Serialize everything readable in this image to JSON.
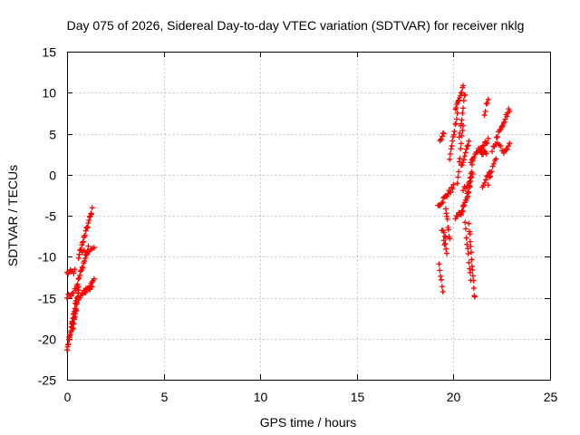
{
  "chart_data": {
    "type": "scatter",
    "title": "Day 075 of 2026, Sidereal Day-to-day VTEC variation (SDTVAR) for receiver nklg",
    "xlabel": "GPS time / hours",
    "ylabel": "SDTVAR / TECUs",
    "xlim": [
      0,
      25
    ],
    "ylim": [
      -25,
      15
    ],
    "grid": true,
    "marker": "plus",
    "x_ticks": [
      0,
      5,
      10,
      15,
      20,
      25
    ],
    "y_ticks": [
      15,
      10,
      5,
      0,
      -5,
      -10,
      -15,
      -20,
      -25
    ],
    "x_tick_labels": [
      "0",
      "5",
      "10",
      "15",
      "20",
      "25"
    ],
    "y_tick_labels": [
      "15",
      "10",
      "5",
      "0",
      "-5",
      "-10",
      "-15",
      "-20",
      "-25"
    ],
    "series": [
      {
        "name": "SDTVAR",
        "color": "#ff0000",
        "segments": [
          {
            "x": [
              0.0,
              0.4
            ],
            "y": [
              -12.0,
              -11.8
            ],
            "n": 8
          },
          {
            "x": [
              0.0,
              0.5
            ],
            "y": [
              -21.5,
              -15.0
            ],
            "n": 22
          },
          {
            "x": [
              0.1,
              0.5
            ],
            "y": [
              -20.0,
              -16.0
            ],
            "n": 12
          },
          {
            "x": [
              0.3,
              0.6
            ],
            "y": [
              -19.0,
              -14.0
            ],
            "n": 14
          },
          {
            "x": [
              0.0,
              0.6
            ],
            "y": [
              -15.0,
              -13.5
            ],
            "n": 10
          },
          {
            "x": [
              0.5,
              1.1
            ],
            "y": [
              -13.5,
              -9.0
            ],
            "n": 16
          },
          {
            "x": [
              0.6,
              1.3
            ],
            "y": [
              -10.0,
              -4.3
            ],
            "n": 22
          },
          {
            "x": [
              0.6,
              1.4
            ],
            "y": [
              -15.0,
              -13.0
            ],
            "n": 16
          },
          {
            "x": [
              0.8,
              1.4
            ],
            "y": [
              -9.5,
              -9.0
            ],
            "n": 8
          },
          {
            "x": [
              0.9,
              1.3
            ],
            "y": [
              -14.5,
              -13.5
            ],
            "n": 8
          },
          {
            "x": [
              19.25,
              19.45
            ],
            "y": [
              -11.0,
              -14.2
            ],
            "n": 6
          },
          {
            "x": [
              19.3,
              19.5
            ],
            "y": [
              4.3,
              4.9
            ],
            "n": 6
          },
          {
            "x": [
              19.4,
              19.6
            ],
            "y": [
              -6.8,
              -7.6
            ],
            "n": 5
          },
          {
            "x": [
              19.5,
              19.65
            ],
            "y": [
              -8.0,
              -9.3
            ],
            "n": 5
          },
          {
            "x": [
              19.2,
              20.0
            ],
            "y": [
              -3.8,
              -1.5
            ],
            "n": 18
          },
          {
            "x": [
              19.6,
              19.8
            ],
            "y": [
              -4.0,
              -8.0
            ],
            "n": 8
          },
          {
            "x": [
              19.8,
              20.2
            ],
            "y": [
              2.0,
              7.5
            ],
            "n": 12
          },
          {
            "x": [
              20.1,
              20.5
            ],
            "y": [
              8.0,
              10.6
            ],
            "n": 12
          },
          {
            "x": [
              20.3,
              20.6
            ],
            "y": [
              4.5,
              10.0
            ],
            "n": 10
          },
          {
            "x": [
              20.2,
              20.5
            ],
            "y": [
              -1.0,
              6.0
            ],
            "n": 10
          },
          {
            "x": [
              20.4,
              20.9
            ],
            "y": [
              -5.0,
              -1.0
            ],
            "n": 14
          },
          {
            "x": [
              20.1,
              20.5
            ],
            "y": [
              -5.5,
              -4.0
            ],
            "n": 8
          },
          {
            "x": [
              20.7,
              21.0
            ],
            "y": [
              -3.0,
              1.5
            ],
            "n": 10
          },
          {
            "x": [
              20.4,
              20.8
            ],
            "y": [
              1.0,
              4.2
            ],
            "n": 10
          },
          {
            "x": [
              20.5,
              21.0
            ],
            "y": [
              -2.0,
              0.0
            ],
            "n": 8
          },
          {
            "x": [
              20.8,
              21.1
            ],
            "y": [
              -6.0,
              -15.2
            ],
            "n": 14
          },
          {
            "x": [
              20.6,
              20.9
            ],
            "y": [
              -6.0,
              -13.0
            ],
            "n": 10
          },
          {
            "x": [
              20.9,
              21.4
            ],
            "y": [
              1.5,
              3.5
            ],
            "n": 10
          },
          {
            "x": [
              21.3,
              21.7
            ],
            "y": [
              3.0,
              2.5
            ],
            "n": 8
          },
          {
            "x": [
              21.5,
              21.9
            ],
            "y": [
              -1.8,
              0.5
            ],
            "n": 8
          },
          {
            "x": [
              21.4,
              21.8
            ],
            "y": [
              3.0,
              4.3
            ],
            "n": 8
          },
          {
            "x": [
              21.6,
              21.8
            ],
            "y": [
              7.5,
              9.2
            ],
            "n": 5
          },
          {
            "x": [
              21.8,
              22.2
            ],
            "y": [
              -1.0,
              2.0
            ],
            "n": 8
          },
          {
            "x": [
              22.0,
              22.5
            ],
            "y": [
              3.0,
              6.0
            ],
            "n": 10
          },
          {
            "x": [
              22.2,
              22.6
            ],
            "y": [
              4.0,
              3.0
            ],
            "n": 6
          },
          {
            "x": [
              22.5,
              22.9
            ],
            "y": [
              6.0,
              8.0
            ],
            "n": 10
          },
          {
            "x": [
              22.6,
              22.9
            ],
            "y": [
              2.5,
              4.0
            ],
            "n": 6
          }
        ]
      }
    ]
  }
}
